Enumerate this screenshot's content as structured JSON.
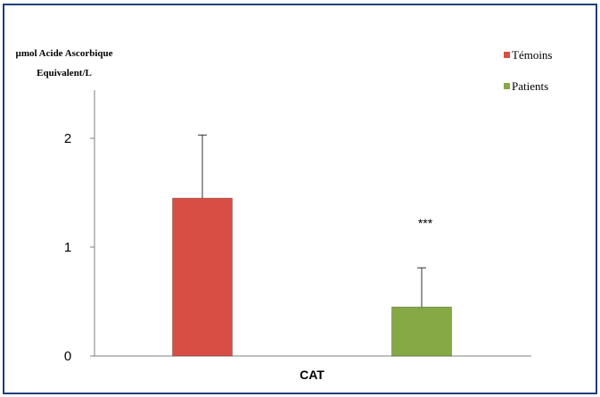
{
  "chart_data": {
    "type": "bar",
    "title": "",
    "ylabel": [
      "µmol Acide Ascorbique",
      "Equivalent/L"
    ],
    "xlabel": "",
    "categories": [
      "CAT"
    ],
    "ylim": [
      0,
      2
    ],
    "yticks": [
      0,
      1,
      2
    ],
    "grid": false,
    "legend_position": "top-right",
    "series": [
      {
        "name": "Témoins",
        "values": [
          1.45
        ],
        "error": [
          0.58
        ],
        "color": "#d94e44",
        "annotation": ""
      },
      {
        "name": "Patients",
        "values": [
          0.45
        ],
        "error": [
          0.36
        ],
        "color": "#86a845",
        "annotation": "***"
      }
    ]
  },
  "colors": {
    "frame_border": "#1f3f7a",
    "axis": "#808080",
    "error_bar": "#333333"
  }
}
